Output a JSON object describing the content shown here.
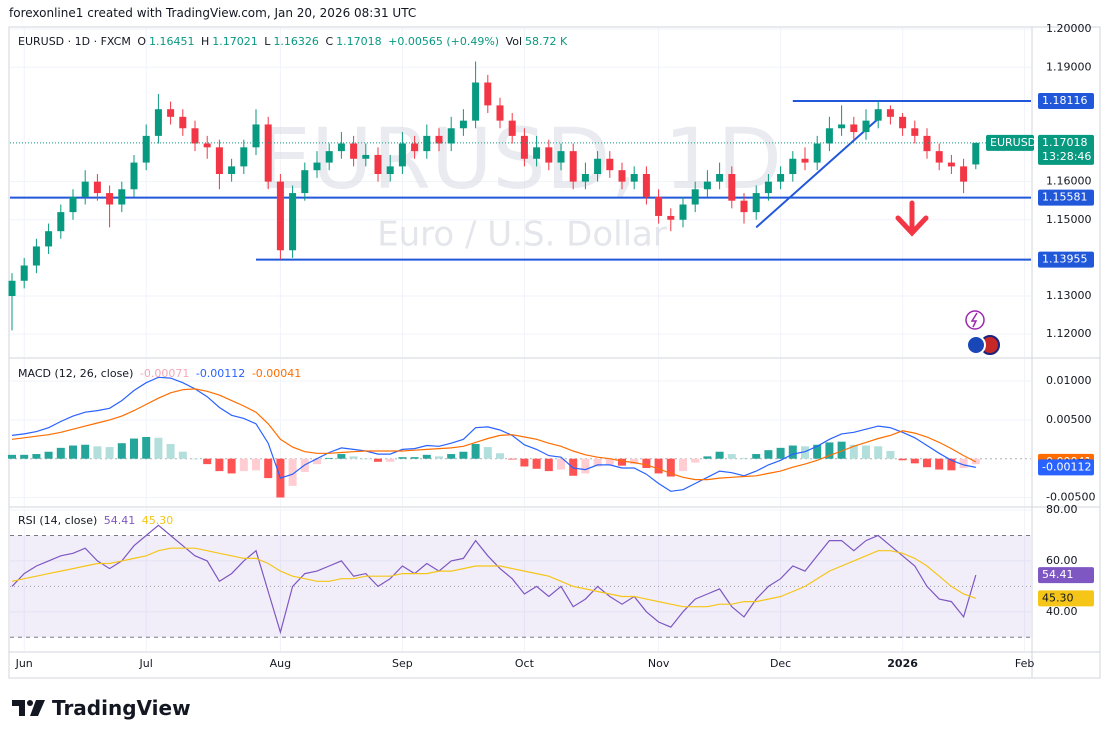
{
  "header": {
    "text": "forexonline1 created with TradingView.com, Jan 20, 2026 08:31 UTC"
  },
  "footer": {
    "logo": "TradingView"
  },
  "chart_data": [
    {
      "type": "candlestick",
      "title": "EURUSD · 1D · FXCM",
      "watermark": "EURUSD, 1D",
      "subtitle": "Euro / U.S. Dollar",
      "ohlc_letters": [
        "O",
        "H",
        "L",
        "C"
      ],
      "change": "+0.00565 (+0.49%)",
      "volume_label": "Vol",
      "volume": "58.72 K",
      "symbol": "EURUSD",
      "countdown": "13:28:46",
      "categories": [
        null,
        "Jun",
        null,
        null,
        null,
        null,
        null,
        null,
        null,
        null,
        null,
        "Jul",
        null,
        null,
        null,
        null,
        null,
        null,
        null,
        null,
        null,
        null,
        "Aug",
        null,
        null,
        null,
        null,
        null,
        null,
        null,
        null,
        null,
        "Sep",
        null,
        null,
        null,
        null,
        null,
        null,
        null,
        null,
        null,
        "Oct",
        null,
        null,
        null,
        null,
        null,
        null,
        null,
        null,
        null,
        null,
        "Nov",
        null,
        null,
        null,
        null,
        null,
        null,
        null,
        null,
        null,
        "Dec",
        null,
        null,
        null,
        null,
        null,
        null,
        null,
        null,
        null,
        "2026",
        null,
        null,
        null,
        null,
        null,
        null,
        null,
        null,
        null,
        "Feb"
      ],
      "open": [
        1.13,
        1.134,
        1.138,
        1.143,
        1.147,
        1.152,
        1.156,
        1.16,
        1.157,
        1.154,
        1.158,
        1.165,
        1.172,
        1.179,
        1.177,
        1.174,
        1.17,
        1.169,
        1.162,
        1.164,
        1.169,
        1.175,
        1.16,
        1.142,
        1.157,
        1.163,
        1.165,
        1.168,
        1.17,
        1.166,
        1.167,
        1.162,
        1.164,
        1.17,
        1.168,
        1.172,
        1.17,
        1.174,
        1.176,
        1.186,
        1.18,
        1.176,
        1.172,
        1.166,
        1.169,
        1.165,
        1.168,
        1.16,
        1.162,
        1.166,
        1.163,
        1.16,
        1.162,
        1.156,
        1.151,
        1.15,
        1.154,
        1.158,
        1.16,
        1.162,
        1.155,
        1.152,
        1.157,
        1.16,
        1.162,
        1.166,
        1.165,
        1.17,
        1.174,
        1.175,
        1.173,
        1.176,
        1.179,
        1.177,
        1.174,
        1.172,
        1.168,
        1.165,
        1.164,
        1.16451,
        null,
        null,
        null,
        null
      ],
      "high": [
        1.136,
        1.14,
        1.145,
        1.149,
        1.154,
        1.158,
        1.163,
        1.162,
        1.159,
        1.16,
        1.167,
        1.175,
        1.183,
        1.181,
        1.179,
        1.176,
        1.172,
        1.171,
        1.166,
        1.171,
        1.179,
        1.177,
        1.162,
        1.159,
        1.165,
        1.168,
        1.17,
        1.173,
        1.172,
        1.17,
        1.169,
        1.167,
        1.173,
        1.172,
        1.175,
        1.174,
        1.177,
        1.179,
        1.1915,
        1.188,
        1.182,
        1.178,
        1.174,
        1.172,
        1.171,
        1.17,
        1.17,
        1.165,
        1.168,
        1.168,
        1.165,
        1.164,
        1.164,
        1.158,
        1.153,
        1.156,
        1.16,
        1.163,
        1.165,
        1.164,
        1.157,
        1.159,
        1.162,
        1.164,
        1.168,
        1.169,
        1.172,
        1.177,
        1.18,
        1.177,
        1.179,
        1.181,
        1.18,
        1.178,
        1.176,
        1.174,
        1.17,
        1.167,
        1.166,
        1.17021,
        null,
        null,
        null,
        null
      ],
      "low": [
        1.121,
        1.132,
        1.136,
        1.141,
        1.145,
        1.15,
        1.154,
        1.155,
        1.148,
        1.152,
        1.156,
        1.163,
        1.17,
        1.175,
        1.172,
        1.168,
        1.166,
        1.158,
        1.16,
        1.162,
        1.167,
        1.158,
        1.1396,
        1.14,
        1.155,
        1.161,
        1.163,
        1.166,
        1.164,
        1.164,
        1.16,
        1.16,
        1.162,
        1.166,
        1.166,
        1.168,
        1.168,
        1.172,
        1.174,
        1.178,
        1.174,
        1.17,
        1.164,
        1.164,
        1.163,
        1.163,
        1.158,
        1.158,
        1.16,
        1.161,
        1.158,
        1.158,
        1.154,
        1.149,
        1.147,
        1.148,
        1.152,
        1.156,
        1.158,
        1.153,
        1.149,
        1.15,
        1.155,
        1.158,
        1.16,
        1.163,
        1.163,
        1.168,
        1.172,
        1.171,
        1.171,
        1.174,
        1.175,
        1.172,
        1.17,
        1.166,
        1.163,
        1.162,
        1.157,
        1.16326,
        null,
        null,
        null,
        null
      ],
      "close": [
        1.134,
        1.138,
        1.143,
        1.147,
        1.152,
        1.156,
        1.16,
        1.157,
        1.154,
        1.158,
        1.165,
        1.172,
        1.179,
        1.177,
        1.174,
        1.17,
        1.169,
        1.162,
        1.164,
        1.169,
        1.175,
        1.16,
        1.142,
        1.157,
        1.163,
        1.165,
        1.168,
        1.17,
        1.166,
        1.167,
        1.162,
        1.164,
        1.17,
        1.168,
        1.172,
        1.17,
        1.174,
        1.176,
        1.186,
        1.18,
        1.176,
        1.172,
        1.166,
        1.169,
        1.165,
        1.168,
        1.16,
        1.162,
        1.166,
        1.163,
        1.16,
        1.162,
        1.156,
        1.151,
        1.15,
        1.154,
        1.158,
        1.16,
        1.162,
        1.155,
        1.152,
        1.157,
        1.16,
        1.162,
        1.166,
        1.165,
        1.17,
        1.174,
        1.175,
        1.173,
        1.176,
        1.179,
        1.177,
        1.174,
        1.172,
        1.168,
        1.165,
        1.164,
        1.16,
        1.17018,
        null,
        null,
        null,
        null
      ],
      "up_color": "#089981",
      "down_color": "#f23645",
      "ylim": [
        1.114,
        1.2003
      ],
      "yticks": [
        {
          "value": 1.12,
          "label": "1.12000"
        },
        {
          "value": 1.13,
          "label": "1.13000"
        },
        {
          "value": 1.15,
          "label": "1.15000"
        },
        {
          "value": 1.16,
          "label": "1.16000"
        },
        {
          "value": 1.19,
          "label": "1.19000"
        },
        {
          "value": 1.2,
          "label": "1.20000"
        }
      ],
      "levels": [
        1.18116,
        1.15581,
        1.13955
      ],
      "level_color": "#2157d9",
      "trendline": [
        1.148,
        1.1765
      ]
    },
    {
      "type": "macd",
      "title": "MACD (12, 26, close)",
      "series": [
        {
          "type": "histogram",
          "colors": [
            "#26a69a",
            "#b2dfdb",
            "#ff5252",
            "#ffcdd2"
          ],
          "values": [
            0.0005,
            0.0005,
            0.0006,
            0.0009,
            0.0014,
            0.0017,
            0.0018,
            0.0016,
            0.0015,
            0.002,
            0.0026,
            0.0028,
            0.0027,
            0.0019,
            0.0009,
            0,
            -0.0007,
            -0.0016,
            -0.0019,
            -0.0016,
            -0.0015,
            -0.0025,
            -0.005,
            -0.0035,
            -0.0017,
            -0.0007,
            0.0001,
            0.0006,
            0.0003,
            0,
            -0.0004,
            -0.0004,
            0.0002,
            0.0002,
            0.0005,
            0.0003,
            0.0006,
            0.0009,
            0.0019,
            0.0015,
            0.0007,
            -0.0001,
            -0.001,
            -0.0013,
            -0.0016,
            -0.0014,
            -0.0022,
            -0.0019,
            -0.001,
            -0.0008,
            -0.0009,
            -0.0007,
            -0.0012,
            -0.0019,
            -0.0023,
            -0.0016,
            -0.0005,
            0.0003,
            0.0009,
            0.0006,
            0.0001,
            0.0006,
            0.0011,
            0.0014,
            0.0017,
            0.0016,
            0.0018,
            0.0021,
            0.0022,
            0.0018,
            0.0017,
            0.0016,
            0.001,
            -0.0002,
            -0.0006,
            -0.0011,
            -0.0014,
            -0.0015,
            -0.0012,
            -0.00071,
            null,
            null,
            null,
            null
          ]
        },
        {
          "type": "line",
          "color": "#2962ff",
          "values": [
            0.003,
            0.0032,
            0.0035,
            0.004,
            0.0048,
            0.0055,
            0.006,
            0.0062,
            0.0065,
            0.0075,
            0.0088,
            0.0098,
            0.0105,
            0.0104,
            0.0098,
            0.009,
            0.008,
            0.0066,
            0.0056,
            0.0052,
            0.0045,
            0.002,
            -0.0025,
            -0.002,
            -0.0008,
            0,
            0.0008,
            0.0014,
            0.0012,
            0.001,
            0.0006,
            0.0006,
            0.0012,
            0.0013,
            0.0017,
            0.0016,
            0.002,
            0.0025,
            0.004,
            0.0041,
            0.0037,
            0.003,
            0.0018,
            0.0012,
            0.0004,
            0.0002,
            -0.0012,
            -0.0014,
            -0.0008,
            -0.0008,
            -0.0012,
            -0.0012,
            -0.002,
            -0.0032,
            -0.0042,
            -0.004,
            -0.0032,
            -0.0024,
            -0.0016,
            -0.0018,
            -0.0022,
            -0.0016,
            -0.0008,
            -0.0002,
            0.0006,
            0.0009,
            0.0016,
            0.0025,
            0.0032,
            0.0034,
            0.0038,
            0.0042,
            0.004,
            0.0034,
            0.0027,
            0.0017,
            0.0007,
            -0.0002,
            -0.0008,
            -0.00112,
            null,
            null,
            null,
            null
          ]
        },
        {
          "type": "line",
          "color": "#ff6d00",
          "values": [
            0.0025,
            0.0027,
            0.0029,
            0.0031,
            0.0034,
            0.0038,
            0.0042,
            0.0046,
            0.005,
            0.0055,
            0.0062,
            0.007,
            0.0078,
            0.0085,
            0.0089,
            0.009,
            0.0087,
            0.0082,
            0.0075,
            0.0068,
            0.006,
            0.0045,
            0.0025,
            0.0015,
            0.0009,
            0.0007,
            0.0007,
            0.0008,
            0.0009,
            0.001,
            0.001,
            0.001,
            0.001,
            0.0011,
            0.0012,
            0.0013,
            0.0014,
            0.0016,
            0.0021,
            0.0026,
            0.003,
            0.0031,
            0.0028,
            0.0025,
            0.002,
            0.0016,
            0.001,
            0.0005,
            0.0002,
            0,
            -0.0003,
            -0.0005,
            -0.0008,
            -0.0013,
            -0.0019,
            -0.0024,
            -0.0027,
            -0.0027,
            -0.0025,
            -0.0024,
            -0.0023,
            -0.0022,
            -0.0019,
            -0.0016,
            -0.0011,
            -0.0007,
            -0.0002,
            0.0004,
            0.001,
            0.0016,
            0.0021,
            0.0026,
            0.003,
            0.0036,
            0.0033,
            0.0028,
            0.0021,
            0.0013,
            0.0004,
            -0.00041,
            null,
            null,
            null,
            null
          ]
        }
      ],
      "ylim": [
        -0.0061,
        0.01286
      ],
      "yticks": [
        {
          "value": 0.01,
          "label": "0.01000"
        },
        {
          "value": 0.005,
          "label": "0.00500"
        },
        {
          "value": -0.005,
          "label": "-0.00500"
        }
      ]
    },
    {
      "type": "rsi",
      "title": "RSI (14, close)",
      "series": [
        {
          "color": "#7e57c2",
          "values": [
            50,
            55,
            58,
            60,
            62,
            63,
            65,
            60,
            57,
            60,
            66,
            70,
            74,
            70,
            66,
            62,
            60,
            52,
            55,
            60,
            64,
            48,
            32,
            50,
            55,
            56,
            58,
            60,
            54,
            55,
            50,
            53,
            58,
            55,
            59,
            56,
            60,
            61,
            68,
            62,
            57,
            53,
            47,
            50,
            46,
            50,
            42,
            45,
            50,
            46,
            43,
            46,
            40,
            36,
            34,
            40,
            45,
            47,
            49,
            42,
            38,
            45,
            50,
            53,
            58,
            56,
            62,
            68,
            68,
            64,
            68,
            70,
            66,
            62,
            58,
            50,
            45,
            44,
            38,
            54.41,
            null,
            null,
            null,
            null
          ]
        },
        {
          "color": "#f5c518",
          "values": [
            52,
            53,
            54,
            55,
            56,
            57,
            58,
            59,
            59,
            60,
            61,
            62,
            64,
            65,
            65,
            65,
            64,
            63,
            62,
            61,
            61,
            59,
            56,
            54,
            53,
            52,
            52,
            53,
            53,
            54,
            54,
            54,
            55,
            55,
            55,
            56,
            56,
            57,
            58,
            58,
            58,
            57,
            56,
            55,
            54,
            52,
            50,
            49,
            48,
            47,
            46,
            46,
            45,
            44,
            43,
            42,
            42,
            42,
            43,
            43,
            44,
            44,
            45,
            46,
            48,
            50,
            53,
            56,
            58,
            60,
            62,
            64,
            64,
            63,
            61,
            58,
            54,
            50,
            47,
            45.3,
            null,
            null,
            null,
            null
          ],
          "value_labels": [
            null,
            null,
            null,
            null,
            null,
            null,
            null,
            null,
            null,
            null,
            null,
            null,
            null,
            null,
            null,
            null,
            null,
            null,
            null,
            null,
            null,
            null,
            null,
            null,
            null,
            null,
            null,
            null,
            null,
            null,
            null,
            null,
            null,
            null,
            null,
            null,
            null,
            null,
            null,
            null,
            null,
            null,
            null,
            null,
            null,
            null,
            null,
            null,
            null,
            null,
            null,
            null,
            null,
            null,
            null,
            null,
            null,
            null,
            null,
            null,
            null,
            null,
            null,
            null,
            null,
            null,
            null,
            null,
            null,
            null,
            null,
            null,
            null,
            null,
            null,
            null,
            null,
            null,
            null,
            "45.30",
            null,
            null,
            null,
            null
          ]
        }
      ],
      "band": [
        30,
        70
      ],
      "midline": 50,
      "ylim": [
        24.6,
        80.8
      ],
      "yticks": [
        {
          "value": 80,
          "label": "80.00"
        },
        {
          "value": 60,
          "label": "60.00"
        },
        {
          "value": 40,
          "label": "40.00"
        }
      ]
    }
  ]
}
